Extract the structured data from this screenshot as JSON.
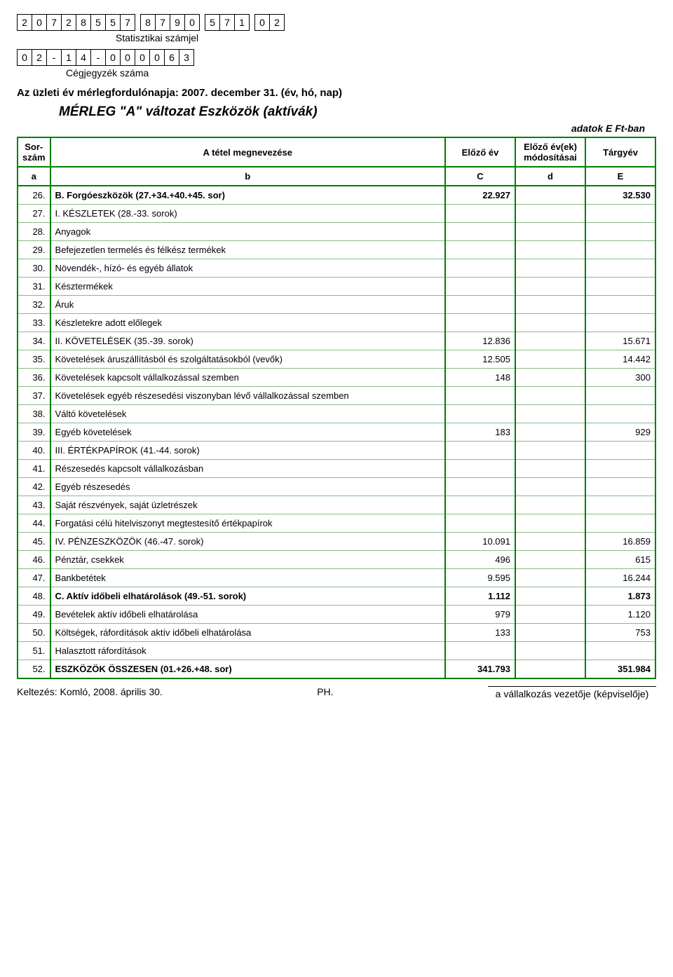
{
  "stat_code": [
    "2",
    "0",
    "7",
    "2",
    "8",
    "5",
    "5",
    "7",
    "",
    "8",
    "7",
    "9",
    "0",
    "",
    "5",
    "7",
    "1",
    "",
    "0",
    "2"
  ],
  "stat_label": "Statisztikai számjel",
  "reg_code": [
    "0",
    "2",
    "-",
    "1",
    "4",
    "-",
    "0",
    "0",
    "0",
    "0",
    "6",
    "3"
  ],
  "reg_label": "Cégjegyzék száma",
  "heading": "Az üzleti év mérlegfordulónapja: 2007. december 31. (év, hó, nap)",
  "title": "MÉRLEG \"A\" változat Eszközök (aktívák)",
  "unit_note": "adatok E Ft-ban",
  "header": {
    "sor": "Sor-\nszám",
    "name": "A tétel megnevezése",
    "prev": "Előző év",
    "mod": "Előző év(ek) módosításai",
    "curr": "Tárgyév",
    "a": "a",
    "b": "b",
    "c": "C",
    "d": "d",
    "e": "E"
  },
  "rows": [
    {
      "n": "26.",
      "name": "B. Forgóeszközök (27.+34.+40.+45. sor)",
      "c": "22.927",
      "d": "",
      "e": "32.530",
      "bold": true
    },
    {
      "n": "27.",
      "name": "I. KÉSZLETEK (28.-33. sorok)",
      "c": "",
      "d": "",
      "e": ""
    },
    {
      "n": "28.",
      "name": "Anyagok",
      "c": "",
      "d": "",
      "e": ""
    },
    {
      "n": "29.",
      "name": "Befejezetlen termelés és félkész termékek",
      "c": "",
      "d": "",
      "e": ""
    },
    {
      "n": "30.",
      "name": "Növendék-, hízó- és egyéb állatok",
      "c": "",
      "d": "",
      "e": ""
    },
    {
      "n": "31.",
      "name": "Késztermékek",
      "c": "",
      "d": "",
      "e": ""
    },
    {
      "n": "32.",
      "name": "Áruk",
      "c": "",
      "d": "",
      "e": ""
    },
    {
      "n": "33.",
      "name": "Készletekre adott előlegek",
      "c": "",
      "d": "",
      "e": ""
    },
    {
      "n": "34.",
      "name": "II. KÖVETELÉSEK (35.-39. sorok)",
      "c": "12.836",
      "d": "",
      "e": "15.671"
    },
    {
      "n": "35.",
      "name": "Követelések áruszállításból és szolgáltatásokból (vevők)",
      "c": "12.505",
      "d": "",
      "e": "14.442"
    },
    {
      "n": "36.",
      "name": "Követelések kapcsolt vállalkozással szemben",
      "c": "148",
      "d": "",
      "e": "300"
    },
    {
      "n": "37.",
      "name": "Követelések egyéb részesedési viszonyban lévő vállalkozással szemben",
      "c": "",
      "d": "",
      "e": ""
    },
    {
      "n": "38.",
      "name": "Váltó követelések",
      "c": "",
      "d": "",
      "e": ""
    },
    {
      "n": "39.",
      "name": "Egyéb követelések",
      "c": "183",
      "d": "",
      "e": "929"
    },
    {
      "n": "40.",
      "name": "III. ÉRTÉKPAPÍROK (41.-44. sorok)",
      "c": "",
      "d": "",
      "e": ""
    },
    {
      "n": "41.",
      "name": "Részesedés kapcsolt vállalkozásban",
      "c": "",
      "d": "",
      "e": ""
    },
    {
      "n": "42.",
      "name": "Egyéb részesedés",
      "c": "",
      "d": "",
      "e": ""
    },
    {
      "n": "43.",
      "name": "Saját részvények, saját üzletrészek",
      "c": "",
      "d": "",
      "e": ""
    },
    {
      "n": "44.",
      "name": "Forgatási célú hitelviszonyt megtestesítő értékpapírok",
      "c": "",
      "d": "",
      "e": ""
    },
    {
      "n": "45.",
      "name": "IV. PÉNZESZKÖZÖK (46.-47. sorok)",
      "c": "10.091",
      "d": "",
      "e": "16.859"
    },
    {
      "n": "46.",
      "name": "Pénztár, csekkek",
      "c": "496",
      "d": "",
      "e": "615"
    },
    {
      "n": "47.",
      "name": "Bankbetétek",
      "c": "9.595",
      "d": "",
      "e": "16.244"
    },
    {
      "n": "48.",
      "name": "C. Aktív időbeli elhatárolások (49.-51. sorok)",
      "c": "1.112",
      "d": "",
      "e": "1.873",
      "bold": true
    },
    {
      "n": "49.",
      "name": "Bevételek aktív időbeli elhatárolása",
      "c": "979",
      "d": "",
      "e": "1.120"
    },
    {
      "n": "50.",
      "name": "Költségek, ráfordítások aktív időbeli elhatárolása",
      "c": "133",
      "d": "",
      "e": "753"
    },
    {
      "n": "51.",
      "name": "Halasztott ráfordítások",
      "c": "",
      "d": "",
      "e": ""
    },
    {
      "n": "52.",
      "name": "ESZKÖZÖK ÖSSZESEN (01.+26.+48. sor)",
      "c": "341.793",
      "d": "",
      "e": "351.984",
      "bold": true
    }
  ],
  "footer": {
    "left": "Keltezés: Komló, 2008. április 30.",
    "mid": "PH.",
    "sig": "a vállalkozás vezetője (képviselője)"
  }
}
